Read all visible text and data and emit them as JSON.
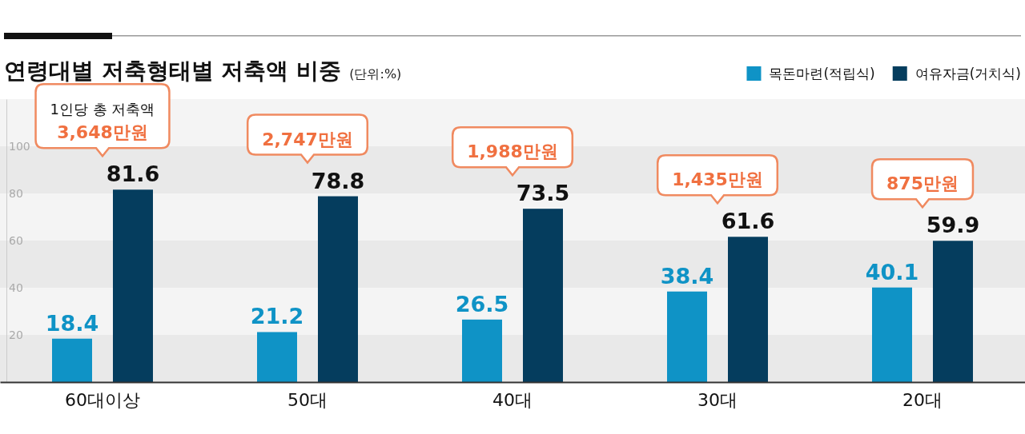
{
  "chart_data": {
    "type": "bar",
    "title": "연령대별 저축형태별 저축액 비중",
    "subtitle": "(단위:%)",
    "categories": [
      "60대이상",
      "50대",
      "40대",
      "30대",
      "20대"
    ],
    "series": [
      {
        "name": "목돈마련(적립식)",
        "color": "#0f93c6",
        "values": [
          18.4,
          21.2,
          26.5,
          38.4,
          40.1
        ]
      },
      {
        "name": "여유자금(거치식)",
        "color": "#053d5e",
        "values": [
          81.6,
          78.8,
          73.5,
          61.6,
          59.9
        ]
      }
    ],
    "ylim": [
      0,
      120
    ],
    "yticks": [
      20,
      40,
      60,
      80,
      100
    ],
    "legend": "top right",
    "data_labels": true,
    "annotations": [
      "1인당 총 저축액\n3,648만원",
      "2,747만원",
      "1,988만원",
      "1,435만원",
      "875만원"
    ]
  }
}
